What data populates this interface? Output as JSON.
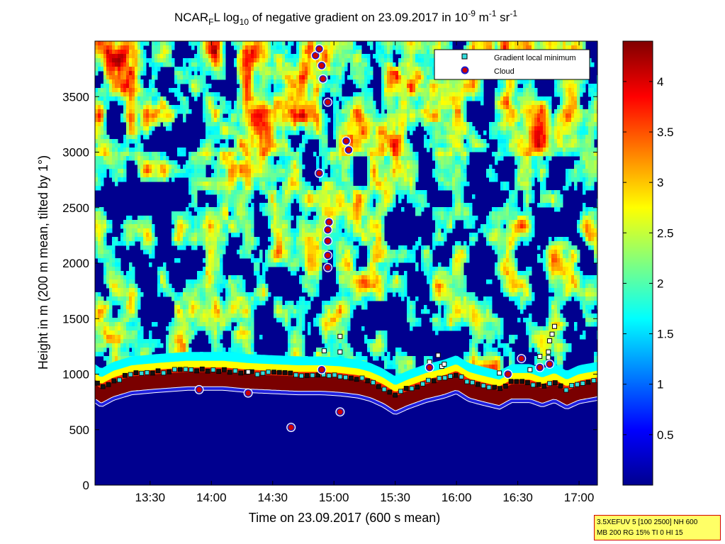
{
  "chart_data": {
    "type": "heatmap",
    "title": {
      "prefix": "NCAR",
      "prefix_sub": "F",
      "mid": "L log",
      "mid_sub": "10",
      "text": " of negative gradient on 23.09.2017 in 10",
      "sup1": "-9",
      "unit1": " m",
      "sup2": "-1",
      "unit2": " sr",
      "sup3": "-1"
    },
    "xlabel": "Time on 23.09.2017 (600 s mean)",
    "ylabel": "Height in m (200 m mean, tilted by 1°)",
    "x_range_hours": [
      13.05,
      17.15
    ],
    "ylim": [
      0,
      4000
    ],
    "x_ticks": [
      {
        "h": 13.5,
        "label": "13:30"
      },
      {
        "h": 14.0,
        "label": "14:00"
      },
      {
        "h": 14.5,
        "label": "14:30"
      },
      {
        "h": 15.0,
        "label": "15:00"
      },
      {
        "h": 15.5,
        "label": "15:30"
      },
      {
        "h": 16.0,
        "label": "16:00"
      },
      {
        "h": 16.5,
        "label": "16:30"
      },
      {
        "h": 17.0,
        "label": "17:00"
      }
    ],
    "y_ticks": [
      0,
      500,
      1000,
      1500,
      2000,
      2500,
      3000,
      3500
    ],
    "colorbar": {
      "range": [
        0,
        4.4
      ],
      "ticks": [
        "0.5",
        "1",
        "1.5",
        "2",
        "2.5",
        "3",
        "3.5",
        "4"
      ],
      "colormap": "jet"
    },
    "legend": {
      "placement": "top-right",
      "entries": [
        "Gradient local minimum",
        "Cloud"
      ]
    },
    "cloud_points": [
      {
        "t": 14.85,
        "h": 3870
      },
      {
        "t": 14.88,
        "h": 3930
      },
      {
        "t": 14.9,
        "h": 3780
      },
      {
        "t": 14.91,
        "h": 3660
      },
      {
        "t": 14.95,
        "h": 3450
      },
      {
        "t": 14.88,
        "h": 2810
      },
      {
        "t": 14.96,
        "h": 2370
      },
      {
        "t": 14.95,
        "h": 2300
      },
      {
        "t": 14.95,
        "h": 2200
      },
      {
        "t": 14.95,
        "h": 2070
      },
      {
        "t": 14.95,
        "h": 1960
      },
      {
        "t": 15.1,
        "h": 3100
      },
      {
        "t": 15.12,
        "h": 3020
      },
      {
        "t": 14.9,
        "h": 1040
      },
      {
        "t": 16.42,
        "h": 1000
      },
      {
        "t": 16.53,
        "h": 1140
      },
      {
        "t": 16.68,
        "h": 1060
      },
      {
        "t": 16.76,
        "h": 1090
      },
      {
        "t": 15.78,
        "h": 1060
      },
      {
        "t": 15.05,
        "h": 660
      },
      {
        "t": 13.9,
        "h": 860
      },
      {
        "t": 14.3,
        "h": 830
      },
      {
        "t": 14.65,
        "h": 520
      }
    ],
    "gradient_minimum_points": [
      {
        "t": 16.8,
        "h": 1430
      },
      {
        "t": 16.78,
        "h": 1360
      },
      {
        "t": 16.76,
        "h": 1300
      },
      {
        "t": 16.75,
        "h": 1200
      },
      {
        "t": 16.75,
        "h": 1150
      },
      {
        "t": 16.35,
        "h": 1010
      },
      {
        "t": 16.6,
        "h": 1040
      },
      {
        "t": 15.88,
        "h": 1070
      },
      {
        "t": 15.9,
        "h": 1090
      },
      {
        "t": 15.78,
        "h": 1110
      },
      {
        "t": 15.05,
        "h": 1340
      },
      {
        "t": 15.05,
        "h": 1200
      },
      {
        "t": 14.92,
        "h": 1210
      },
      {
        "t": 15.85,
        "h": 1170
      },
      {
        "t": 14.3,
        "h": 1020
      },
      {
        "t": 16.68,
        "h": 1160
      }
    ],
    "cloud_base_line": [
      {
        "t": 13.05,
        "h": 760
      },
      {
        "t": 13.1,
        "h": 720
      },
      {
        "t": 13.2,
        "h": 780
      },
      {
        "t": 13.35,
        "h": 830
      },
      {
        "t": 13.55,
        "h": 850
      },
      {
        "t": 13.8,
        "h": 870
      },
      {
        "t": 14.1,
        "h": 870
      },
      {
        "t": 14.3,
        "h": 850
      },
      {
        "t": 14.5,
        "h": 840
      },
      {
        "t": 14.7,
        "h": 830
      },
      {
        "t": 14.9,
        "h": 830
      },
      {
        "t": 15.05,
        "h": 820
      },
      {
        "t": 15.2,
        "h": 800
      },
      {
        "t": 15.3,
        "h": 770
      },
      {
        "t": 15.4,
        "h": 720
      },
      {
        "t": 15.5,
        "h": 650
      },
      {
        "t": 15.6,
        "h": 700
      },
      {
        "t": 15.75,
        "h": 760
      },
      {
        "t": 15.9,
        "h": 800
      },
      {
        "t": 16.0,
        "h": 840
      },
      {
        "t": 16.1,
        "h": 770
      },
      {
        "t": 16.2,
        "h": 740
      },
      {
        "t": 16.35,
        "h": 700
      },
      {
        "t": 16.45,
        "h": 760
      },
      {
        "t": 16.6,
        "h": 760
      },
      {
        "t": 16.7,
        "h": 720
      },
      {
        "t": 16.8,
        "h": 760
      },
      {
        "t": 16.9,
        "h": 700
      },
      {
        "t": 17.0,
        "h": 750
      },
      {
        "t": 17.15,
        "h": 780
      }
    ]
  },
  "info_box": {
    "line1": "3.5XEFUV 5 [100 2500] NH 600",
    "line2": "MB 200 RG 15% TI 0 HI 15"
  },
  "colors": {
    "background_field": "#00008f",
    "cloud_marker_fill": "#cc0000",
    "cloud_marker_edge": "#1a1acc",
    "gradient_marker_fill": "#33dddd",
    "boundary_layer": "#7a0000"
  }
}
